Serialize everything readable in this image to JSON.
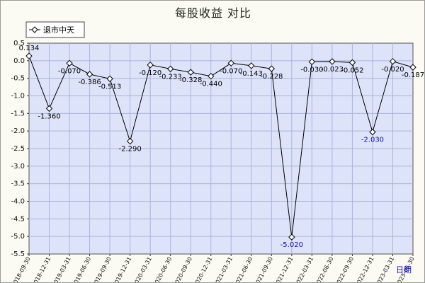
{
  "chart_data": {
    "type": "line",
    "title": "每股收益  对比",
    "xlabel": "日期",
    "ylabel": "",
    "ylim": [
      -5.5,
      0.5
    ],
    "yticks": [
      "0.5",
      "0.0",
      "-0.5",
      "-1.0",
      "-1.5",
      "-2.0",
      "-2.5",
      "-3.0",
      "-3.5",
      "-4.0",
      "-4.5",
      "-5.0",
      "-5.5"
    ],
    "grid": true,
    "legend": "top-left",
    "categories": [
      "2018-09-30",
      "2018-12-31",
      "2019-03-31",
      "2019-06-30",
      "2019-09-30",
      "2019-12-31",
      "2020-03-31",
      "2020-06-30",
      "2020-09-30",
      "2020-12-31",
      "2021-03-31",
      "2021-06-30",
      "2021-09-30",
      "2021-12-31",
      "2022-03-31",
      "2022-06-30",
      "2022-09-30",
      "2022-12-31",
      "2023-03-31",
      "2023-06-30"
    ],
    "series": [
      {
        "name": "退市中天",
        "values": [
          0.134,
          -1.36,
          -0.07,
          -0.386,
          -0.513,
          -2.29,
          -0.12,
          -0.233,
          -0.328,
          -0.44,
          -0.07,
          -0.143,
          -0.228,
          -5.02,
          -0.03,
          -0.023,
          -0.052,
          -2.03,
          -0.02,
          -0.187
        ],
        "labels": [
          "0.134",
          "-1.360",
          "-0.070",
          "-0.386",
          "-0.513",
          "-2.290",
          "-0.120",
          "-0.233",
          "-0.328",
          "-0.440",
          "-0.070",
          "-0.143",
          "-0.228",
          "-5.020",
          "-0.030",
          "-0.023",
          "-0.052",
          "-2.030",
          "-0.020",
          "-0.187"
        ]
      }
    ],
    "colors": {
      "plot_bg": "#dde3f8",
      "grid": "#aab4dc",
      "line": "#000000",
      "marker_fill": "#ffffff",
      "accent_labels": "#1010a0"
    }
  },
  "legend_icon": "diamond-marker-icon"
}
